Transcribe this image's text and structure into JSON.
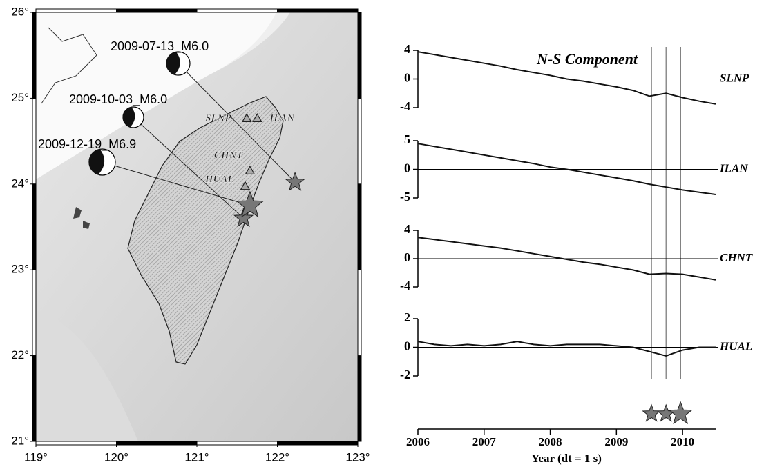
{
  "chart_data": [
    {
      "type": "map",
      "xlim": [
        119,
        123
      ],
      "ylim": [
        21,
        26
      ],
      "xticks": [
        {
          "value": 119,
          "label": "119°"
        },
        {
          "value": 120,
          "label": "120°"
        },
        {
          "value": 121,
          "label": "121°"
        },
        {
          "value": 122,
          "label": "122°"
        },
        {
          "value": 123,
          "label": "123°"
        }
      ],
      "yticks": [
        {
          "value": 21,
          "label": "21°"
        },
        {
          "value": 22,
          "label": "22°"
        },
        {
          "value": 23,
          "label": "23°"
        },
        {
          "value": 24,
          "label": "24°"
        },
        {
          "value": 25,
          "label": "25°"
        },
        {
          "value": 26,
          "label": "26°"
        }
      ],
      "events": [
        {
          "label": "2009-07-13_M6.0",
          "lon": 122.22,
          "lat": 24.02
        },
        {
          "label": "2009-10-03_M6.0",
          "lon": 121.58,
          "lat": 23.6
        },
        {
          "label": "2009-12-19_M6.9",
          "lon": 121.66,
          "lat": 23.75
        }
      ],
      "stations": [
        {
          "name": "SLNP",
          "lon": 121.62,
          "lat": 24.76
        },
        {
          "name": "ILAN",
          "lon": 121.75,
          "lat": 24.76
        },
        {
          "name": "CHNT",
          "lon": 121.66,
          "lat": 24.15
        },
        {
          "name": "HUAL",
          "lon": 121.6,
          "lat": 23.97
        }
      ]
    },
    {
      "type": "line",
      "title": "N-S Component",
      "xlabel": "Year (dt = 1 s)",
      "xlim": [
        2006,
        2010.5
      ],
      "xticks": [
        2006,
        2007,
        2008,
        2009,
        2010
      ],
      "x": [
        2006,
        2006.25,
        2006.5,
        2006.75,
        2007,
        2007.25,
        2007.5,
        2007.75,
        2008,
        2008.25,
        2008.5,
        2008.75,
        2009,
        2009.25,
        2009.5,
        2009.75,
        2010,
        2010.25,
        2010.5
      ],
      "event_times": [
        2009.53,
        2009.75,
        2009.97
      ],
      "series": [
        {
          "name": "SLNP",
          "color": "#111111",
          "ylim": [
            -4,
            4
          ],
          "yticks": [
            -4,
            0,
            4
          ],
          "values": [
            3.8,
            3.4,
            3.0,
            2.6,
            2.2,
            1.8,
            1.3,
            0.9,
            0.5,
            0.0,
            -0.3,
            -0.7,
            -1.1,
            -1.6,
            -2.4,
            -2.0,
            -2.6,
            -3.1,
            -3.5
          ]
        },
        {
          "name": "ILAN",
          "color": "#111111",
          "ylim": [
            -5,
            5
          ],
          "yticks": [
            -5,
            0,
            5
          ],
          "values": [
            4.5,
            4.0,
            3.5,
            3.0,
            2.5,
            2.0,
            1.5,
            1.0,
            0.4,
            0.0,
            -0.5,
            -1.0,
            -1.5,
            -2.0,
            -2.6,
            -3.1,
            -3.6,
            -4.0,
            -4.4
          ]
        },
        {
          "name": "CHNT",
          "color": "#111111",
          "ylim": [
            -4,
            4
          ],
          "yticks": [
            -4,
            0,
            4
          ],
          "values": [
            3.0,
            2.7,
            2.4,
            2.1,
            1.8,
            1.5,
            1.1,
            0.7,
            0.3,
            -0.1,
            -0.5,
            -0.8,
            -1.2,
            -1.6,
            -2.2,
            -2.1,
            -2.2,
            -2.6,
            -3.0
          ]
        },
        {
          "name": "HUAL",
          "color": "#111111",
          "ylim": [
            -2,
            2
          ],
          "yticks": [
            -2,
            0,
            2
          ],
          "values": [
            0.4,
            0.2,
            0.1,
            0.2,
            0.1,
            0.2,
            0.4,
            0.2,
            0.1,
            0.2,
            0.2,
            0.2,
            0.1,
            0.0,
            -0.3,
            -0.6,
            -0.2,
            0.0,
            0.0
          ]
        }
      ]
    }
  ]
}
